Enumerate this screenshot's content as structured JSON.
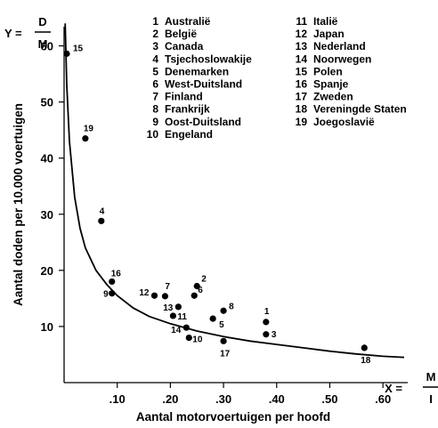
{
  "chart_data": {
    "type": "scatter",
    "title": "",
    "xlabel": "Aantal motorvoertuigen per hoofd",
    "ylabel": "Aantal doden per 10.000 voertuigen",
    "x_symbol": "X =",
    "x_formula": {
      "numerator": "M",
      "denominator": "I"
    },
    "y_symbol": "Y =",
    "y_formula": {
      "numerator": "D",
      "denominator": "M"
    },
    "xlim": [
      0,
      0.65
    ],
    "ylim": [
      0,
      65
    ],
    "xticks": [
      ".10",
      ".20",
      ".30",
      ".40",
      ".50",
      ".60"
    ],
    "yticks": [
      "10",
      "20",
      "30",
      "40",
      "50",
      "60"
    ],
    "grid": false,
    "legend_position": "top-right",
    "legend": [
      {
        "num": "1",
        "name": "Australië"
      },
      {
        "num": "2",
        "name": "België"
      },
      {
        "num": "3",
        "name": "Canada"
      },
      {
        "num": "4",
        "name": "Tsjechoslowakije"
      },
      {
        "num": "5",
        "name": "Denemarken"
      },
      {
        "num": "6",
        "name": "West-Duitsland"
      },
      {
        "num": "7",
        "name": "Finland"
      },
      {
        "num": "8",
        "name": "Frankrijk"
      },
      {
        "num": "9",
        "name": "Oost-Duitsland"
      },
      {
        "num": "10",
        "name": "Engeland"
      },
      {
        "num": "11",
        "name": "Italië"
      },
      {
        "num": "12",
        "name": "Japan"
      },
      {
        "num": "13",
        "name": "Nederland"
      },
      {
        "num": "14",
        "name": "Noorwegen"
      },
      {
        "num": "15",
        "name": "Polen"
      },
      {
        "num": "16",
        "name": "Spanje"
      },
      {
        "num": "17",
        "name": "Zweden"
      },
      {
        "num": "18",
        "name": "Vereningde Staten"
      },
      {
        "num": "19",
        "name": "Joegoslavië"
      }
    ],
    "points": [
      {
        "label": "1",
        "x": 0.38,
        "y": 10.8
      },
      {
        "label": "2",
        "x": 0.25,
        "y": 17.2
      },
      {
        "label": "3",
        "x": 0.38,
        "y": 8.6
      },
      {
        "label": "4",
        "x": 0.07,
        "y": 28.8
      },
      {
        "label": "5",
        "x": 0.28,
        "y": 11.4
      },
      {
        "label": "6",
        "x": 0.245,
        "y": 15.5
      },
      {
        "label": "7",
        "x": 0.19,
        "y": 15.4
      },
      {
        "label": "8",
        "x": 0.3,
        "y": 12.8
      },
      {
        "label": "9",
        "x": 0.09,
        "y": 15.9
      },
      {
        "label": "10",
        "x": 0.235,
        "y": 8.0
      },
      {
        "label": "11",
        "x": 0.205,
        "y": 11.9
      },
      {
        "label": "12",
        "x": 0.17,
        "y": 15.5
      },
      {
        "label": "13",
        "x": 0.215,
        "y": 13.5
      },
      {
        "label": "14",
        "x": 0.23,
        "y": 9.8
      },
      {
        "label": "15",
        "x": 0.005,
        "y": 58.6
      },
      {
        "label": "16",
        "x": 0.09,
        "y": 18.0
      },
      {
        "label": "17",
        "x": 0.3,
        "y": 7.4
      },
      {
        "label": "18",
        "x": 0.565,
        "y": 6.2
      },
      {
        "label": "19",
        "x": 0.04,
        "y": 43.5
      }
    ],
    "fit_curve": [
      [
        0.002,
        64
      ],
      [
        0.005,
        53
      ],
      [
        0.01,
        43
      ],
      [
        0.02,
        33
      ],
      [
        0.03,
        27.5
      ],
      [
        0.04,
        24
      ],
      [
        0.06,
        20
      ],
      [
        0.08,
        17.5
      ],
      [
        0.1,
        15.5
      ],
      [
        0.13,
        13.3
      ],
      [
        0.16,
        11.8
      ],
      [
        0.2,
        10.5
      ],
      [
        0.25,
        9.2
      ],
      [
        0.3,
        8.2
      ],
      [
        0.35,
        7.4
      ],
      [
        0.4,
        6.8
      ],
      [
        0.45,
        6.2
      ],
      [
        0.5,
        5.6
      ],
      [
        0.55,
        5.1
      ],
      [
        0.6,
        4.7
      ],
      [
        0.64,
        4.5
      ]
    ]
  }
}
